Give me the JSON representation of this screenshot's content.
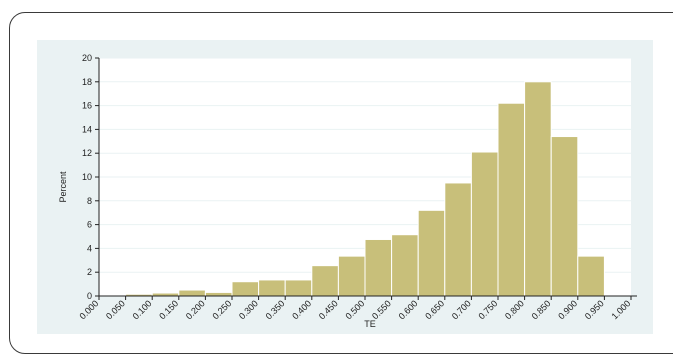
{
  "chart_data": {
    "type": "bar",
    "xlabel": "TE",
    "ylabel": "Percent",
    "ylim": [
      0,
      20
    ],
    "xlim": [
      0.0,
      1.0
    ],
    "y_ticks": [
      0,
      2,
      4,
      6,
      8,
      10,
      12,
      14,
      16,
      18,
      20
    ],
    "x_ticks": [
      "0.000",
      "0.050",
      "0.100",
      "0.150",
      "0.200",
      "0.250",
      "0.300",
      "0.350",
      "0.400",
      "0.450",
      "0.500",
      "0.550",
      "0.600",
      "0.650",
      "0.700",
      "0.750",
      "0.800",
      "0.850",
      "0.900",
      "0.950",
      "1.000"
    ],
    "bin_width": 0.05,
    "bin_starts": [
      0.0,
      0.05,
      0.1,
      0.15,
      0.2,
      0.25,
      0.3,
      0.35,
      0.4,
      0.45,
      0.5,
      0.55,
      0.6,
      0.65,
      0.7,
      0.75,
      0.8,
      0.85,
      0.9
    ],
    "values": [
      0.05,
      0.15,
      0.25,
      0.5,
      0.3,
      1.2,
      1.35,
      1.35,
      2.55,
      3.35,
      4.75,
      5.15,
      7.2,
      9.5,
      12.1,
      16.2,
      18.0,
      13.4,
      3.35
    ],
    "grid": true,
    "bar_color": "#c8bf7a",
    "bar_edge_color": "#ffffff"
  }
}
